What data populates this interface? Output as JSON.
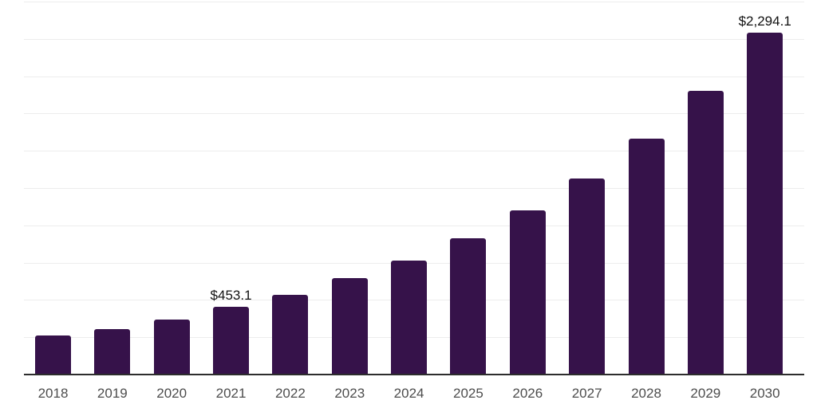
{
  "chart_data": {
    "type": "bar",
    "title": "",
    "xlabel": "",
    "ylabel": "",
    "categories": [
      "2018",
      "2019",
      "2020",
      "2021",
      "2022",
      "2023",
      "2024",
      "2025",
      "2026",
      "2027",
      "2028",
      "2029",
      "2030"
    ],
    "values": [
      260,
      305,
      368,
      453.1,
      536,
      644,
      766,
      913,
      1100,
      1312,
      1581,
      1903,
      2294.1
    ],
    "data_labels": [
      null,
      null,
      null,
      "$453.1",
      null,
      null,
      null,
      null,
      null,
      null,
      null,
      null,
      "$2,294.1"
    ],
    "ylim": [
      0,
      2500
    ],
    "gridline_interval": 250,
    "grid": "horizontal",
    "legend_position": "none",
    "y_axis_labels_visible": false,
    "colors": {
      "bar": "#36124a",
      "gridline": "#ededed",
      "axis_line": "#2d2d2d",
      "x_tick_label": "#4d4d4d",
      "data_label": "#111111",
      "background": "#ffffff"
    }
  }
}
